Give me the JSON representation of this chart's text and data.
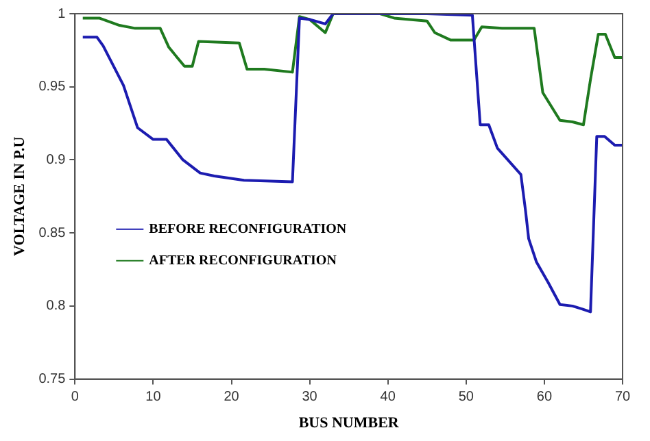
{
  "chart_data": {
    "type": "line",
    "xlabel": "BUS NUMBER",
    "ylabel": "VOLTAGE IN P.U",
    "xlim": [
      0,
      70
    ],
    "xticks": [
      0,
      10,
      20,
      30,
      40,
      50,
      60,
      70
    ],
    "ylim": [
      0.75,
      1
    ],
    "yticks": [
      0.75,
      0.8,
      0.85,
      0.9,
      0.95,
      1
    ],
    "grid": false,
    "legend": "left",
    "marker": "none",
    "line_style": "solid",
    "series": [
      {
        "name": "BEFORE RECONFIGURATION",
        "color": "#1c1cb0",
        "x": [
          1,
          2.8,
          3.6,
          6.2,
          8,
          10,
          11.7,
          13.8,
          16,
          17.8,
          21.6,
          27.8,
          28.7,
          30,
          32,
          33,
          39,
          45,
          50.8,
          51.8,
          52.9,
          54,
          57,
          57.6,
          58,
          59,
          60.5,
          62,
          63.6,
          64.8,
          65.9,
          66.7,
          67.7,
          69,
          70
        ],
        "values": [
          0.984,
          0.984,
          0.978,
          0.951,
          0.922,
          0.914,
          0.914,
          0.9,
          0.891,
          0.889,
          0.886,
          0.885,
          0.997,
          0.996,
          0.993,
          1,
          1,
          1,
          0.999,
          0.924,
          0.924,
          0.908,
          0.89,
          0.865,
          0.846,
          0.83,
          0.816,
          0.801,
          0.8,
          0.798,
          0.796,
          0.916,
          0.916,
          0.91,
          0.91
        ]
      },
      {
        "name": "AFTER RECONFIGURATION",
        "color": "#1f7a1f",
        "x": [
          1,
          3.1,
          5.7,
          7.7,
          10.9,
          12,
          14,
          15,
          15.8,
          21,
          22,
          24.2,
          27.8,
          28.7,
          30,
          32,
          33,
          39,
          40.8,
          45,
          46,
          48,
          51,
          52,
          54.6,
          58.7,
          59.8,
          62,
          63.6,
          65,
          65.9,
          66.9,
          67.8,
          69,
          70
        ],
        "values": [
          0.997,
          0.997,
          0.992,
          0.99,
          0.99,
          0.977,
          0.964,
          0.964,
          0.981,
          0.98,
          0.962,
          0.962,
          0.96,
          0.998,
          0.996,
          0.987,
          1,
          1,
          0.997,
          0.995,
          0.987,
          0.982,
          0.982,
          0.991,
          0.99,
          0.99,
          0.946,
          0.927,
          0.926,
          0.924,
          0.955,
          0.986,
          0.986,
          0.97,
          0.97
        ]
      }
    ]
  }
}
